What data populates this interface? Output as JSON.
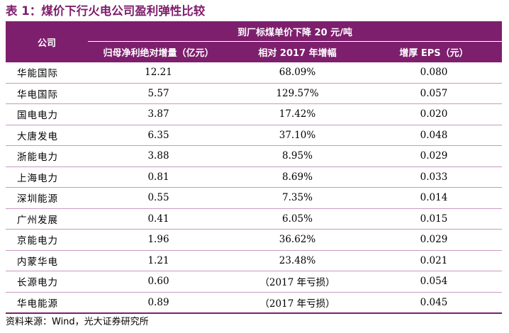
{
  "title": "表 1：煤价下行火电公司盈利弹性比较",
  "header": {
    "company": "公司",
    "group": "到厂标煤单价下降 20 元/吨",
    "col1": "归母净利绝对增量（亿元）",
    "col2": "相对 2017 年增幅",
    "col3": "增厚 EPS（元）"
  },
  "rows": [
    {
      "company": "华能国际",
      "increase": "12.21",
      "growth": "68.09%",
      "eps": "0.080"
    },
    {
      "company": "华电国际",
      "increase": "5.57",
      "growth": "129.57%",
      "eps": "0.057"
    },
    {
      "company": "国电电力",
      "increase": "3.87",
      "growth": "17.42%",
      "eps": "0.020"
    },
    {
      "company": "大唐发电",
      "increase": "6.35",
      "growth": "37.10%",
      "eps": "0.048"
    },
    {
      "company": "浙能电力",
      "increase": "3.88",
      "growth": "8.95%",
      "eps": "0.029"
    },
    {
      "company": "上海电力",
      "increase": "0.81",
      "growth": "8.69%",
      "eps": "0.033"
    },
    {
      "company": "深圳能源",
      "increase": "0.55",
      "growth": "7.35%",
      "eps": "0.014"
    },
    {
      "company": "广州发展",
      "increase": "0.41",
      "growth": "6.05%",
      "eps": "0.015"
    },
    {
      "company": "京能电力",
      "increase": "1.96",
      "growth": "36.62%",
      "eps": "0.029"
    },
    {
      "company": "内蒙华电",
      "increase": "1.21",
      "growth": "23.48%",
      "eps": "0.021"
    },
    {
      "company": "长源电力",
      "increase": "0.60",
      "growth": "（2017 年亏损）",
      "eps": "0.054"
    },
    {
      "company": "华电能源",
      "increase": "0.89",
      "growth": "（2017 年亏损）",
      "eps": "0.045"
    }
  ],
  "source": "资料来源：Wind，光大证券研究所"
}
